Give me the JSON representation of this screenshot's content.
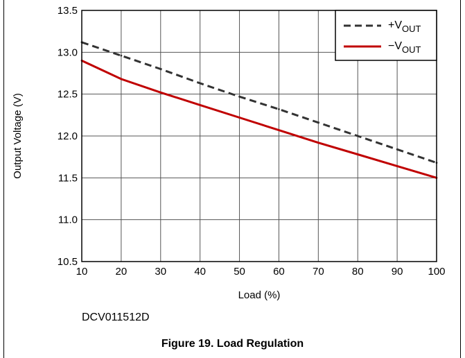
{
  "chart_data": {
    "type": "line",
    "xlabel": "Load (%)",
    "ylabel": "Output Voltage (V)",
    "xlim": [
      10,
      100
    ],
    "ylim": [
      10.5,
      13.5
    ],
    "x_ticks": [
      "10",
      "20",
      "30",
      "40",
      "50",
      "60",
      "70",
      "80",
      "90",
      "100"
    ],
    "y_ticks": [
      "10.5",
      "11.0",
      "11.5",
      "12.0",
      "12.5",
      "13.0",
      "13.5"
    ],
    "grid": true,
    "legend_position": "top-right",
    "x": [
      10,
      20,
      30,
      40,
      50,
      60,
      70,
      80,
      90,
      100
    ],
    "series": [
      {
        "name": "+V",
        "name_sub": "OUT",
        "color": "#333333",
        "style": "dashed",
        "values": [
          13.12,
          12.96,
          12.8,
          12.63,
          12.47,
          12.32,
          12.16,
          12.0,
          11.84,
          11.68
        ]
      },
      {
        "name": "−V",
        "name_sub": "OUT",
        "color": "#c00000",
        "style": "solid",
        "values": [
          12.9,
          12.68,
          12.52,
          12.37,
          12.22,
          12.07,
          11.92,
          11.78,
          11.64,
          11.5
        ]
      }
    ]
  },
  "part_number": "DCV011512D",
  "caption": "Figure 19. Load Regulation"
}
